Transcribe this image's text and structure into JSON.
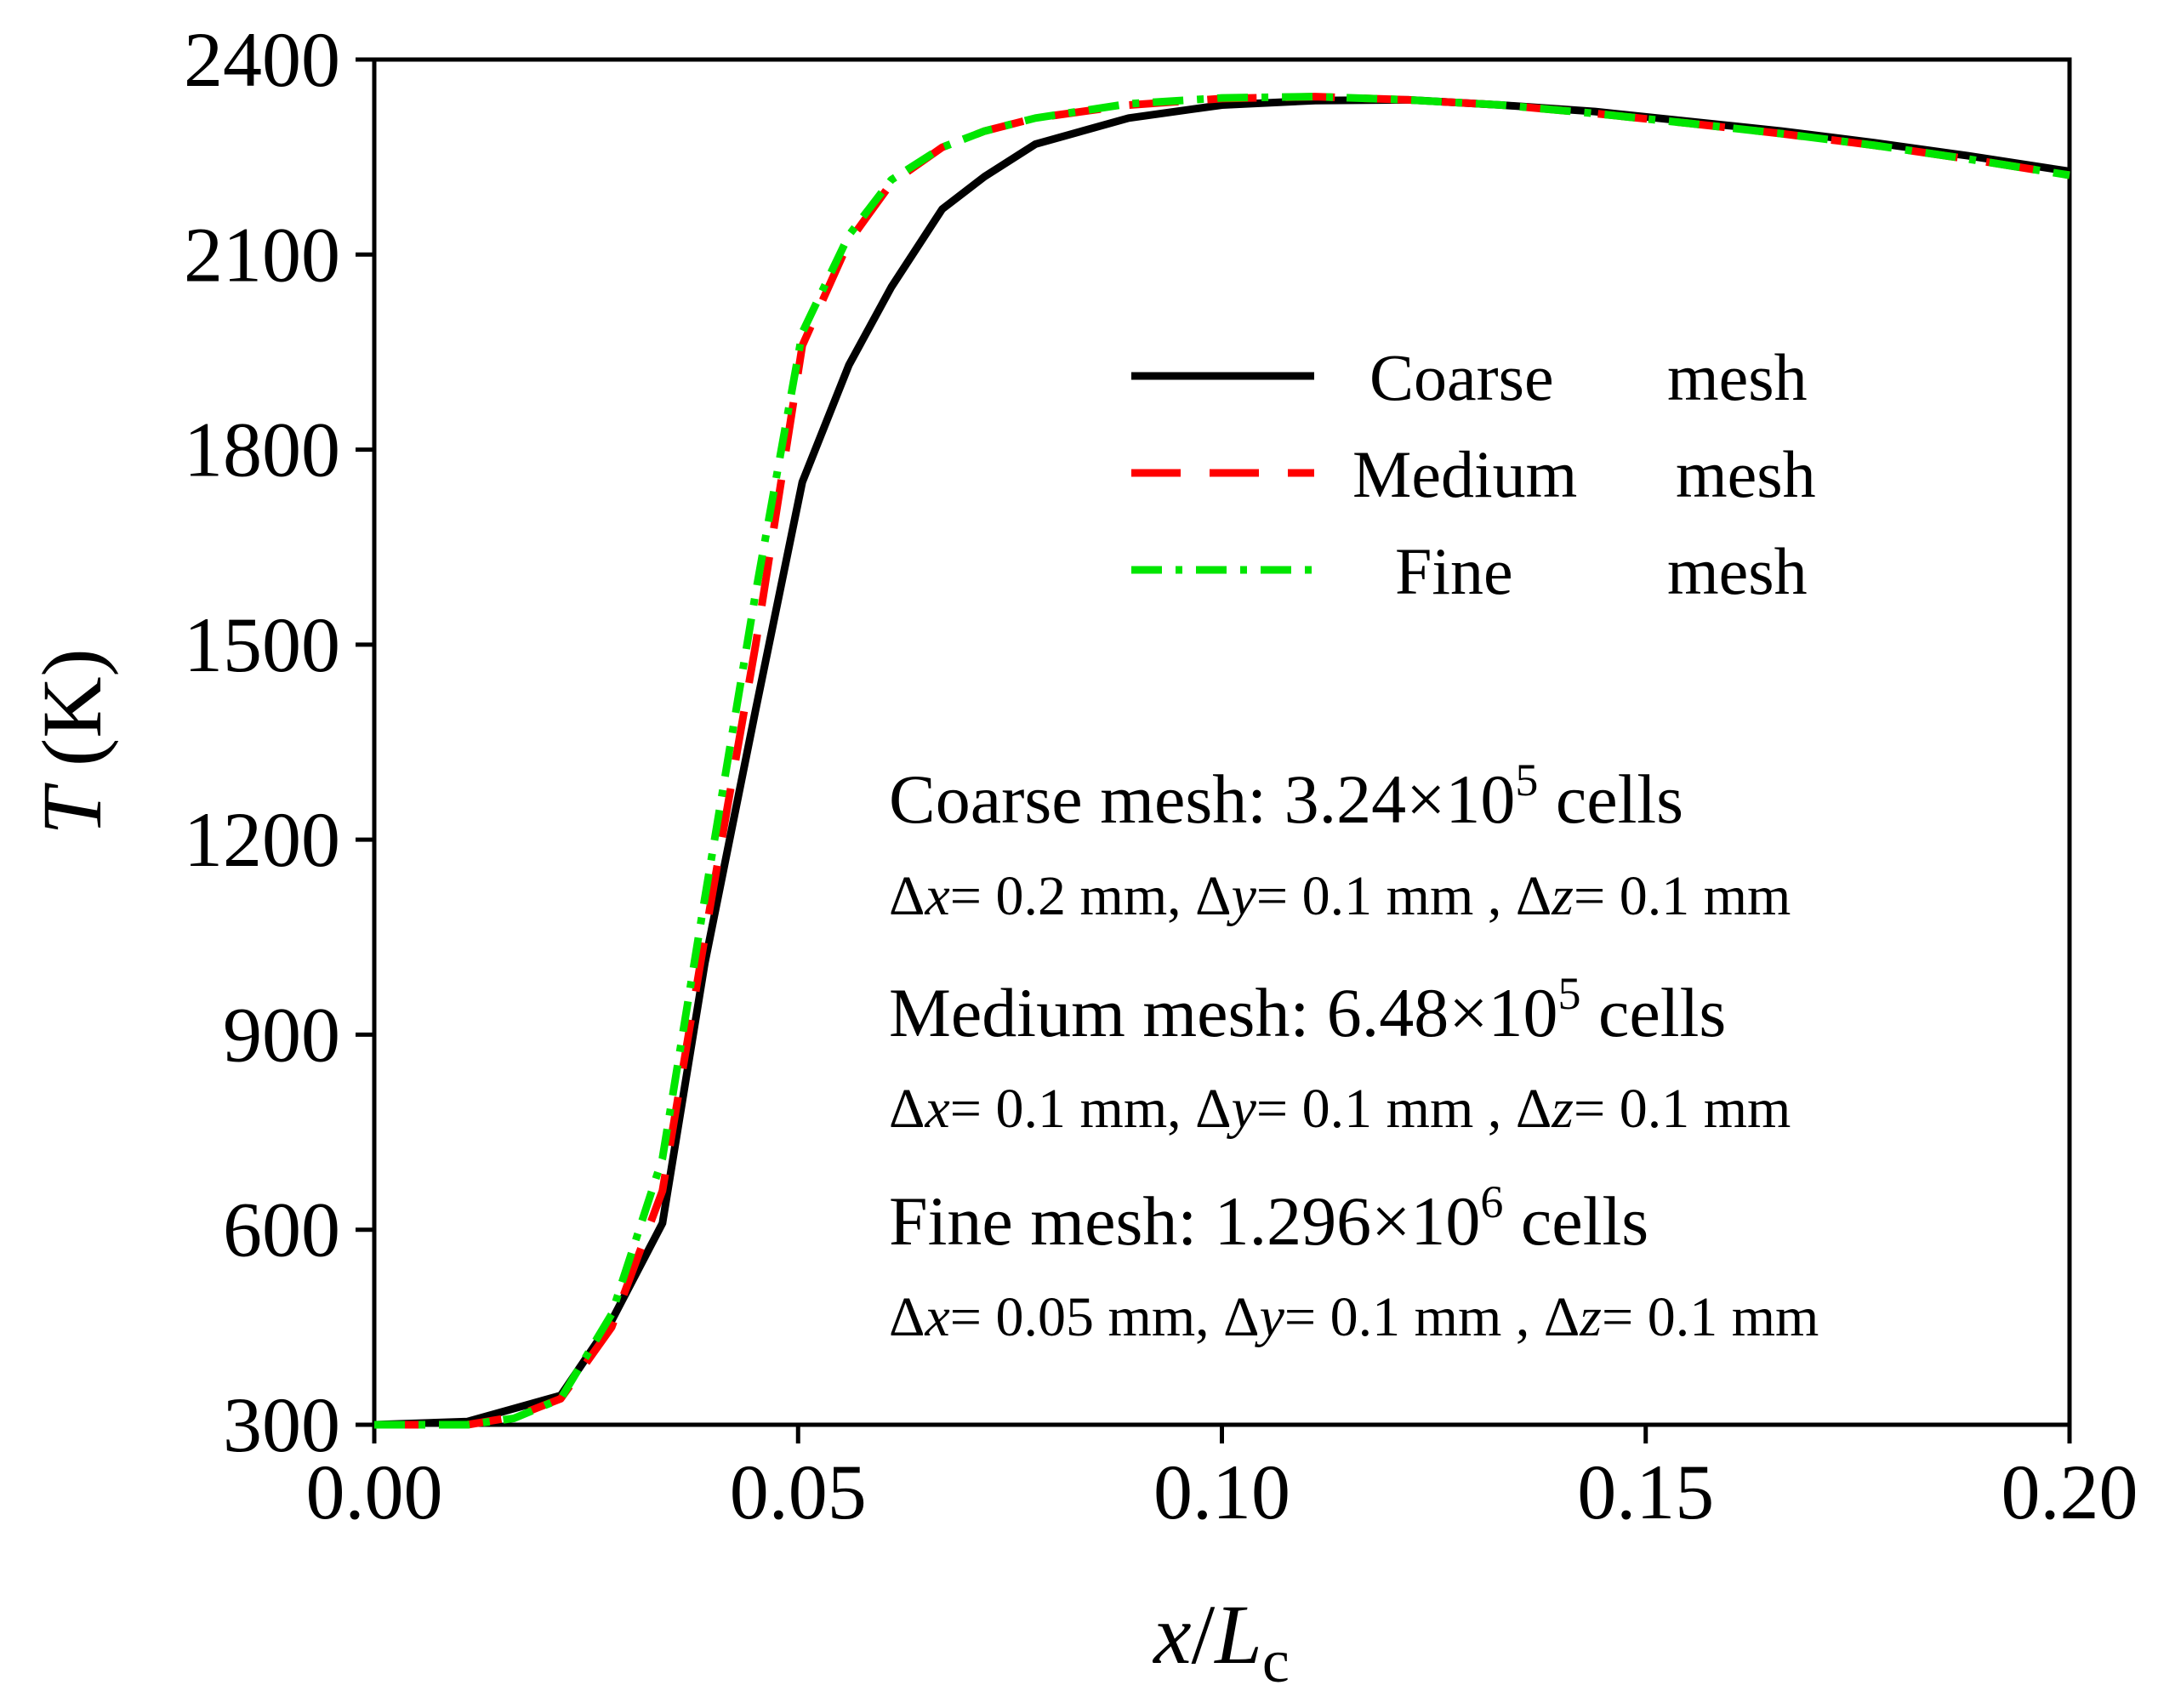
{
  "chart_data": {
    "type": "line",
    "xlabel": {
      "var": "x",
      "sep": "/",
      "sym": "L",
      "sub": "c"
    },
    "ylabel": {
      "var": "T",
      "unit": " (K)"
    },
    "xlim": [
      0.0,
      0.2
    ],
    "ylim": [
      300,
      2400
    ],
    "xticks": [
      {
        "value": 0.0,
        "label": "0.00"
      },
      {
        "value": 0.05,
        "label": "0.05"
      },
      {
        "value": 0.1,
        "label": "0.10"
      },
      {
        "value": 0.15,
        "label": "0.15"
      },
      {
        "value": 0.2,
        "label": "0.20"
      }
    ],
    "yticks": [
      {
        "value": 300,
        "label": "300"
      },
      {
        "value": 600,
        "label": "600"
      },
      {
        "value": 900,
        "label": "900"
      },
      {
        "value": 1200,
        "label": "1200"
      },
      {
        "value": 1500,
        "label": "1500"
      },
      {
        "value": 1800,
        "label": "1800"
      },
      {
        "value": 2100,
        "label": "2100"
      },
      {
        "value": 2400,
        "label": "2400"
      }
    ],
    "grid": false,
    "legend_position": "upper-right",
    "series": [
      {
        "name": "Coarse mesh",
        "legend_parts": [
          "Coarse",
          "mesh"
        ],
        "color": "#000000",
        "style": "solid",
        "x": [
          0.0,
          0.011,
          0.022,
          0.028,
          0.034,
          0.039,
          0.045,
          0.0505,
          0.056,
          0.061,
          0.067,
          0.072,
          0.078,
          0.089,
          0.1,
          0.111,
          0.122,
          0.133,
          0.144,
          0.155,
          0.166,
          0.177,
          0.188,
          0.2
        ],
        "y": [
          300,
          305,
          345,
          460,
          610,
          1010,
          1400,
          1750,
          1930,
          2050,
          2170,
          2220,
          2270,
          2310,
          2330,
          2337,
          2338,
          2330,
          2320,
          2305,
          2290,
          2272,
          2252,
          2228
        ]
      },
      {
        "name": "Medium mesh",
        "legend_parts": [
          "Medium",
          "mesh"
        ],
        "color": "#ff0000",
        "style": "dashed",
        "x": [
          0.0,
          0.011,
          0.0165,
          0.022,
          0.028,
          0.034,
          0.039,
          0.045,
          0.0505,
          0.056,
          0.061,
          0.067,
          0.072,
          0.078,
          0.089,
          0.1,
          0.111,
          0.122,
          0.133,
          0.144,
          0.155,
          0.166,
          0.177,
          0.188,
          0.2
        ],
        "y": [
          300,
          300,
          312,
          340,
          450,
          660,
          1050,
          1500,
          1960,
          2120,
          2210,
          2265,
          2290,
          2310,
          2330,
          2340,
          2343,
          2338,
          2330,
          2317,
          2302,
          2286,
          2268,
          2247,
          2222
        ]
      },
      {
        "name": "Fine mesh",
        "legend_parts": [
          "Fine",
          "mesh"
        ],
        "color": "#00e600",
        "style": "dashdot",
        "x": [
          0.0,
          0.011,
          0.0165,
          0.022,
          0.028,
          0.034,
          0.039,
          0.045,
          0.0505,
          0.056,
          0.061,
          0.067,
          0.072,
          0.078,
          0.089,
          0.1,
          0.111,
          0.122,
          0.133,
          0.144,
          0.155,
          0.166,
          0.177,
          0.188,
          0.2
        ],
        "y": [
          300,
          300,
          310,
          340,
          470,
          710,
          1110,
          1580,
          1980,
          2130,
          2215,
          2265,
          2290,
          2310,
          2332,
          2341,
          2343,
          2338,
          2330,
          2317,
          2302,
          2286,
          2268,
          2247,
          2222
        ]
      }
    ],
    "annotations": [
      {
        "main": {
          "label": "Coarse mesh:",
          "num": "3.24×10",
          "exp": "5",
          "unit": "cells"
        },
        "sub": {
          "dx": "0.2 mm",
          "dy": "0.1 mm",
          "dz": "0.1 mm"
        }
      },
      {
        "main": {
          "label": "Medium mesh:",
          "num": "6.48×10",
          "exp": "5",
          "unit": "cells"
        },
        "sub": {
          "dx": "0.1 mm",
          "dy": "0.1 mm",
          "dz": "0.1 mm"
        }
      },
      {
        "main": {
          "label": "Fine mesh:",
          "num": "1.296×10",
          "exp": "6",
          "unit": "cells"
        },
        "sub": {
          "dx": "0.05 mm",
          "dy": "0.1 mm",
          "dz": "0.1 mm"
        }
      }
    ],
    "delta": {
      "sym": "Δ",
      "eq": "=",
      "comma": ",",
      "spaced_comma": " ,"
    }
  }
}
